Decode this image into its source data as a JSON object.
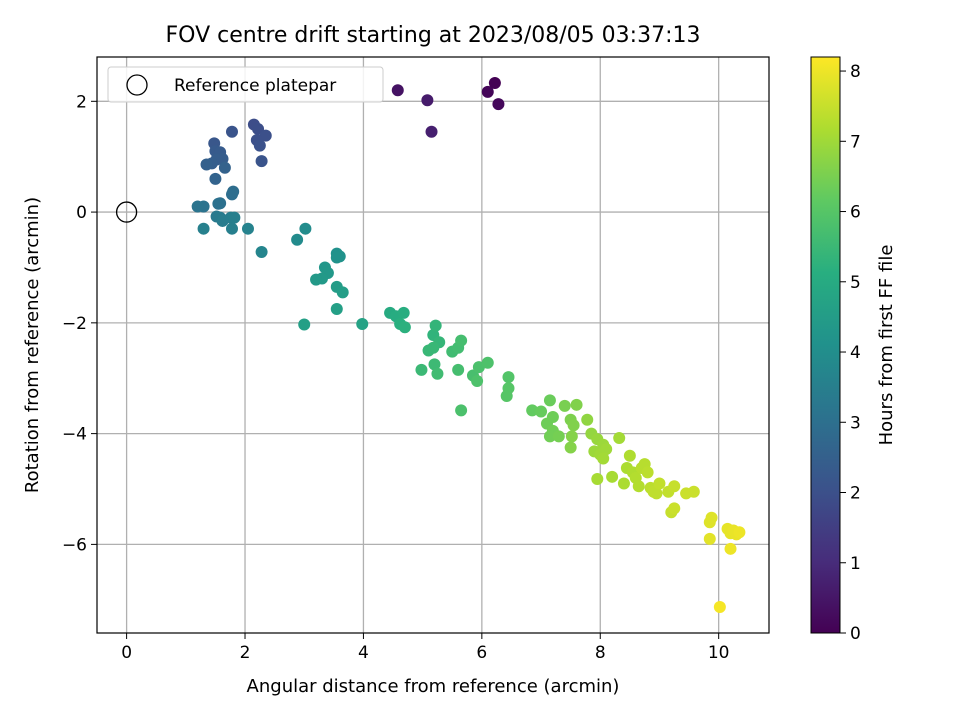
{
  "chart_data": {
    "type": "scatter",
    "title": "FOV centre drift starting at 2023/08/05 03:37:13",
    "xlabel": "Angular distance from reference (arcmin)",
    "ylabel": "Rotation from reference (arcmin)",
    "xlim": [
      -0.5,
      10.85
    ],
    "ylim": [
      -7.6,
      2.8
    ],
    "xticks": [
      0,
      2,
      4,
      6,
      8,
      10
    ],
    "yticks": [
      2,
      0,
      -2,
      -4,
      -6
    ],
    "grid": true,
    "legend": {
      "position": "top-left",
      "entries": [
        "Reference platepar"
      ]
    },
    "reference": {
      "x": 0,
      "y": 0
    },
    "colorbar": {
      "label": "Hours from first FF file",
      "range": [
        0,
        8.2
      ],
      "ticks": [
        0,
        1,
        2,
        3,
        4,
        5,
        6,
        7,
        8
      ],
      "colormap": "viridis"
    },
    "series": [
      {
        "points": [
          [
            6.22,
            2.33,
            0.0
          ],
          [
            6.1,
            2.17,
            0.1
          ],
          [
            6.28,
            1.95,
            0.15
          ],
          [
            4.58,
            2.2,
            0.4
          ],
          [
            5.08,
            2.02,
            0.6
          ],
          [
            5.15,
            1.45,
            0.7
          ],
          [
            2.15,
            1.58,
            1.9
          ],
          [
            2.22,
            1.5,
            1.95
          ],
          [
            2.35,
            1.38,
            2.0
          ],
          [
            2.2,
            1.3,
            2.0
          ],
          [
            2.25,
            1.2,
            2.05
          ],
          [
            2.28,
            0.92,
            2.1
          ],
          [
            1.78,
            1.45,
            2.1
          ],
          [
            1.48,
            1.24,
            2.2
          ],
          [
            1.5,
            1.1,
            2.3
          ],
          [
            1.58,
            1.08,
            2.35
          ],
          [
            1.62,
            0.96,
            2.4
          ],
          [
            1.52,
            0.95,
            2.4
          ],
          [
            1.44,
            0.88,
            2.45
          ],
          [
            1.35,
            0.86,
            2.5
          ],
          [
            1.66,
            0.8,
            2.55
          ],
          [
            1.5,
            0.6,
            2.6
          ],
          [
            1.8,
            0.37,
            2.9
          ],
          [
            1.78,
            0.32,
            2.95
          ],
          [
            1.58,
            0.16,
            3.0
          ],
          [
            1.3,
            0.1,
            3.1
          ],
          [
            1.2,
            0.1,
            3.15
          ],
          [
            1.55,
            0.15,
            3.05
          ],
          [
            1.52,
            -0.08,
            3.3
          ],
          [
            1.58,
            -0.1,
            3.35
          ],
          [
            1.62,
            -0.16,
            3.4
          ],
          [
            1.76,
            -0.1,
            3.45
          ],
          [
            1.82,
            -0.1,
            3.5
          ],
          [
            1.78,
            -0.3,
            3.5
          ],
          [
            1.3,
            -0.3,
            3.55
          ],
          [
            2.05,
            -0.3,
            3.6
          ],
          [
            2.28,
            -0.72,
            3.7
          ],
          [
            2.88,
            -0.5,
            3.9
          ],
          [
            3.02,
            -0.3,
            3.95
          ],
          [
            3.55,
            -0.75,
            4.1
          ],
          [
            3.6,
            -0.8,
            4.15
          ],
          [
            3.55,
            -0.82,
            4.15
          ],
          [
            3.35,
            -1.0,
            4.3
          ],
          [
            3.4,
            -1.1,
            4.35
          ],
          [
            3.3,
            -1.2,
            4.4
          ],
          [
            3.2,
            -1.22,
            4.4
          ],
          [
            3.55,
            -1.35,
            4.5
          ],
          [
            3.65,
            -1.45,
            4.55
          ],
          [
            3.55,
            -1.75,
            4.6
          ],
          [
            3.98,
            -2.02,
            4.7
          ],
          [
            3.0,
            -2.03,
            4.6
          ],
          [
            4.45,
            -1.82,
            5.0
          ],
          [
            4.55,
            -1.88,
            5.05
          ],
          [
            4.68,
            -1.82,
            5.1
          ],
          [
            4.62,
            -2.02,
            5.15
          ],
          [
            4.7,
            -2.08,
            5.2
          ],
          [
            5.18,
            -2.22,
            5.3
          ],
          [
            5.22,
            -2.05,
            5.35
          ],
          [
            5.28,
            -2.35,
            5.4
          ],
          [
            5.1,
            -2.5,
            5.45
          ],
          [
            5.18,
            -2.45,
            5.45
          ],
          [
            4.98,
            -2.85,
            5.5
          ],
          [
            5.2,
            -2.75,
            5.55
          ],
          [
            5.25,
            -2.92,
            5.6
          ],
          [
            5.5,
            -2.52,
            5.6
          ],
          [
            5.6,
            -2.45,
            5.65
          ],
          [
            5.65,
            -2.32,
            5.7
          ],
          [
            5.6,
            -2.85,
            5.7
          ],
          [
            5.85,
            -2.95,
            5.75
          ],
          [
            5.95,
            -2.8,
            5.8
          ],
          [
            6.1,
            -2.72,
            5.85
          ],
          [
            5.92,
            -3.05,
            5.85
          ],
          [
            5.65,
            -3.58,
            5.8
          ],
          [
            6.45,
            -2.98,
            5.95
          ],
          [
            6.45,
            -3.18,
            6.0
          ],
          [
            6.42,
            -3.32,
            6.0
          ],
          [
            6.85,
            -3.58,
            6.2
          ],
          [
            7.0,
            -3.6,
            6.25
          ],
          [
            7.15,
            -3.4,
            6.3
          ],
          [
            7.2,
            -3.7,
            6.35
          ],
          [
            7.1,
            -3.82,
            6.35
          ],
          [
            7.2,
            -3.95,
            6.4
          ],
          [
            7.15,
            -4.05,
            6.4
          ],
          [
            7.3,
            -4.05,
            6.45
          ],
          [
            7.4,
            -3.5,
            6.5
          ],
          [
            7.5,
            -3.75,
            6.55
          ],
          [
            7.6,
            -3.48,
            6.6
          ],
          [
            7.55,
            -3.85,
            6.6
          ],
          [
            7.52,
            -4.05,
            6.65
          ],
          [
            7.5,
            -4.25,
            6.65
          ],
          [
            7.78,
            -3.75,
            6.8
          ],
          [
            7.85,
            -4.0,
            6.85
          ],
          [
            7.95,
            -4.1,
            6.9
          ],
          [
            8.05,
            -4.2,
            6.95
          ],
          [
            7.9,
            -4.32,
            6.95
          ],
          [
            8.0,
            -4.38,
            7.0
          ],
          [
            8.1,
            -4.28,
            7.0
          ],
          [
            8.05,
            -4.45,
            7.05
          ],
          [
            8.32,
            -4.08,
            7.05
          ],
          [
            7.95,
            -4.82,
            7.1
          ],
          [
            8.2,
            -4.78,
            7.1
          ],
          [
            8.4,
            -4.9,
            7.15
          ],
          [
            8.45,
            -4.62,
            7.15
          ],
          [
            8.5,
            -4.4,
            7.2
          ],
          [
            8.55,
            -4.7,
            7.2
          ],
          [
            8.6,
            -4.8,
            7.25
          ],
          [
            8.65,
            -4.95,
            7.25
          ],
          [
            8.7,
            -4.62,
            7.3
          ],
          [
            8.75,
            -4.55,
            7.3
          ],
          [
            8.8,
            -4.7,
            7.35
          ],
          [
            8.85,
            -4.98,
            7.35
          ],
          [
            8.95,
            -5.08,
            7.4
          ],
          [
            8.9,
            -5.05,
            7.4
          ],
          [
            9.0,
            -4.9,
            7.45
          ],
          [
            9.15,
            -5.05,
            7.45
          ],
          [
            9.25,
            -4.95,
            7.5
          ],
          [
            9.2,
            -5.42,
            7.5
          ],
          [
            9.25,
            -5.35,
            7.55
          ],
          [
            9.45,
            -5.08,
            7.55
          ],
          [
            9.58,
            -5.05,
            7.55
          ],
          [
            9.85,
            -5.6,
            7.8
          ],
          [
            9.88,
            -5.52,
            7.8
          ],
          [
            9.85,
            -5.9,
            7.85
          ],
          [
            10.15,
            -5.72,
            7.9
          ],
          [
            10.2,
            -5.8,
            7.9
          ],
          [
            10.25,
            -5.75,
            7.95
          ],
          [
            10.3,
            -5.82,
            7.95
          ],
          [
            10.35,
            -5.78,
            8.0
          ],
          [
            10.2,
            -6.08,
            8.0
          ],
          [
            10.02,
            -7.13,
            8.1
          ]
        ]
      }
    ]
  }
}
